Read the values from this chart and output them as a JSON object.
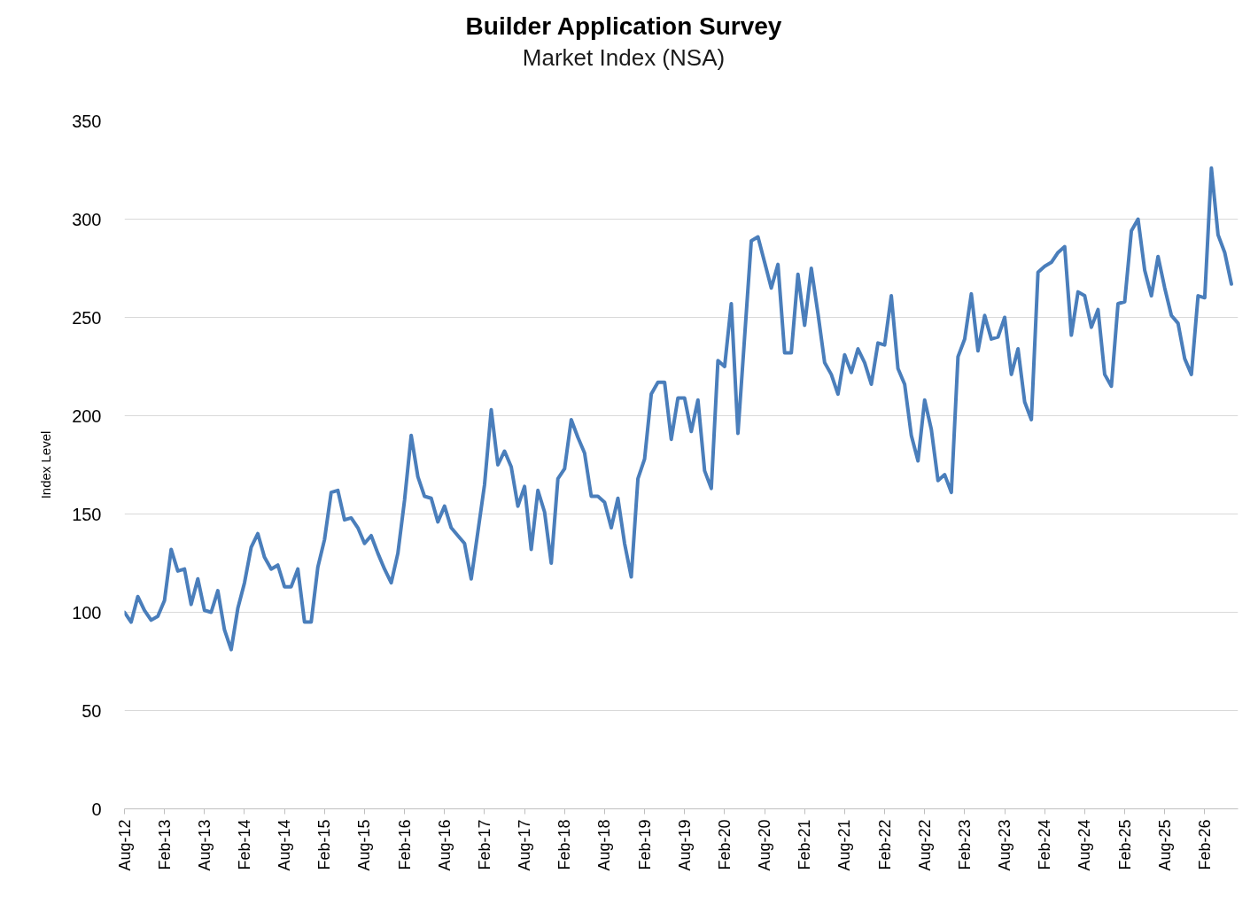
{
  "chart_data": {
    "type": "line",
    "title": "Builder Application Survey",
    "subtitle": "Market Index (NSA)",
    "ylabel": "Index Level",
    "color": "#4a7ebb",
    "x": [
      "2012-08",
      "2012-09",
      "2012-10",
      "2012-11",
      "2012-12",
      "2013-01",
      "2013-02",
      "2013-03",
      "2013-04",
      "2013-05",
      "2013-06",
      "2013-07",
      "2013-08",
      "2013-09",
      "2013-10",
      "2013-11",
      "2013-12",
      "2014-01",
      "2014-02",
      "2014-03",
      "2014-04",
      "2014-05",
      "2014-06",
      "2014-07",
      "2014-08",
      "2014-09",
      "2014-10",
      "2014-11",
      "2014-12",
      "2015-01",
      "2015-02",
      "2015-03",
      "2015-04",
      "2015-05",
      "2015-06",
      "2015-07",
      "2015-08",
      "2015-09",
      "2015-10",
      "2015-11",
      "2015-12",
      "2016-01",
      "2016-02",
      "2016-03",
      "2016-04",
      "2016-05",
      "2016-06",
      "2016-07",
      "2016-08",
      "2016-09",
      "2016-10",
      "2016-11",
      "2016-12",
      "2017-01",
      "2017-02",
      "2017-03",
      "2017-04",
      "2017-05",
      "2017-06",
      "2017-07",
      "2017-08",
      "2017-09",
      "2017-10",
      "2017-11",
      "2017-12",
      "2018-01",
      "2018-02",
      "2018-03",
      "2018-04",
      "2018-05",
      "2018-06",
      "2018-07",
      "2018-08",
      "2018-09",
      "2018-10",
      "2018-11",
      "2018-12",
      "2019-01",
      "2019-02",
      "2019-03",
      "2019-04",
      "2019-05",
      "2019-06",
      "2019-07",
      "2019-08",
      "2019-09",
      "2019-10",
      "2019-11",
      "2019-12",
      "2020-01",
      "2020-02",
      "2020-03",
      "2020-04",
      "2020-05",
      "2020-06",
      "2020-07",
      "2020-08",
      "2020-09",
      "2020-10",
      "2020-11",
      "2020-12",
      "2021-01",
      "2021-02",
      "2021-03",
      "2021-04",
      "2021-05",
      "2021-06",
      "2021-07",
      "2021-08",
      "2021-09",
      "2021-10",
      "2021-11",
      "2021-12",
      "2022-01",
      "2022-02",
      "2022-03",
      "2022-04",
      "2022-05",
      "2022-06",
      "2022-07",
      "2022-08",
      "2022-09",
      "2022-10",
      "2022-11",
      "2022-12",
      "2023-01",
      "2023-02",
      "2023-03",
      "2023-04",
      "2023-05",
      "2023-06",
      "2023-07",
      "2023-08",
      "2023-09",
      "2023-10",
      "2023-11",
      "2023-12",
      "2024-01",
      "2024-02",
      "2024-03",
      "2024-04",
      "2024-05",
      "2024-06",
      "2024-07",
      "2024-08",
      "2024-09",
      "2024-10",
      "2024-11",
      "2024-12",
      "2025-01",
      "2025-02",
      "2025-03",
      "2025-04",
      "2025-05",
      "2025-06",
      "2025-07",
      "2025-08",
      "2025-09",
      "2025-10",
      "2025-11",
      "2025-12",
      "2026-01",
      "2026-02",
      "2026-03",
      "2026-04",
      "2026-05",
      "2026-06"
    ],
    "values": [
      100,
      95,
      108,
      101,
      96,
      98,
      106,
      132,
      121,
      122,
      104,
      117,
      101,
      100,
      111,
      91,
      81,
      102,
      115,
      133,
      140,
      128,
      122,
      124,
      113,
      113,
      122,
      95,
      95,
      123,
      137,
      161,
      162,
      147,
      148,
      143,
      135,
      139,
      130,
      122,
      115,
      130,
      157,
      190,
      169,
      159,
      158,
      146,
      154,
      143,
      139,
      135,
      117,
      141,
      165,
      203,
      175,
      182,
      174,
      154,
      164,
      132,
      162,
      151,
      125,
      168,
      173,
      198,
      189,
      181,
      159,
      159,
      156,
      143,
      158,
      135,
      118,
      168,
      178,
      211,
      217,
      217,
      188,
      209,
      209,
      192,
      208,
      172,
      163,
      228,
      225,
      257,
      191,
      240,
      289,
      291,
      278,
      265,
      277,
      232,
      232,
      272,
      246,
      275,
      252,
      227,
      221,
      211,
      231,
      222,
      234,
      227,
      216,
      237,
      236,
      261,
      224,
      216,
      190,
      177,
      208,
      193,
      167,
      170,
      161,
      230,
      239,
      262,
      233,
      251,
      239,
      240,
      250,
      221,
      234,
      207,
      198,
      273,
      276,
      278,
      283,
      286,
      241,
      263,
      261,
      245,
      254,
      221,
      215,
      257,
      258,
      294,
      300,
      274,
      261,
      281,
      265,
      251,
      247,
      229,
      221,
      261,
      260,
      326,
      292,
      283,
      267
    ],
    "xlim": [
      "2012-08",
      "2026-07"
    ],
    "xticks": [
      {
        "value": "2012-08",
        "label": "Aug-12"
      },
      {
        "value": "2013-02",
        "label": "Feb-13"
      },
      {
        "value": "2013-08",
        "label": "Aug-13"
      },
      {
        "value": "2014-02",
        "label": "Feb-14"
      },
      {
        "value": "2014-08",
        "label": "Aug-14"
      },
      {
        "value": "2015-02",
        "label": "Feb-15"
      },
      {
        "value": "2015-08",
        "label": "Aug-15"
      },
      {
        "value": "2016-02",
        "label": "Feb-16"
      },
      {
        "value": "2016-08",
        "label": "Aug-16"
      },
      {
        "value": "2017-02",
        "label": "Feb-17"
      },
      {
        "value": "2017-08",
        "label": "Aug-17"
      },
      {
        "value": "2018-02",
        "label": "Feb-18"
      },
      {
        "value": "2018-08",
        "label": "Aug-18"
      },
      {
        "value": "2019-02",
        "label": "Feb-19"
      },
      {
        "value": "2019-08",
        "label": "Aug-19"
      },
      {
        "value": "2020-02",
        "label": "Feb-20"
      },
      {
        "value": "2020-08",
        "label": "Aug-20"
      },
      {
        "value": "2021-02",
        "label": "Feb-21"
      },
      {
        "value": "2021-08",
        "label": "Aug-21"
      },
      {
        "value": "2022-02",
        "label": "Feb-22"
      },
      {
        "value": "2022-08",
        "label": "Aug-22"
      },
      {
        "value": "2023-02",
        "label": "Feb-23"
      },
      {
        "value": "2023-08",
        "label": "Aug-23"
      },
      {
        "value": "2024-02",
        "label": "Feb-24"
      },
      {
        "value": "2024-08",
        "label": "Aug-24"
      },
      {
        "value": "2025-02",
        "label": "Feb-25"
      },
      {
        "value": "2025-08",
        "label": "Aug-25"
      },
      {
        "value": "2026-02",
        "label": "Feb-26"
      }
    ],
    "ylim": [
      0,
      350
    ],
    "yticks": [
      0,
      50,
      100,
      150,
      200,
      250,
      300,
      350
    ],
    "grid": "y"
  }
}
